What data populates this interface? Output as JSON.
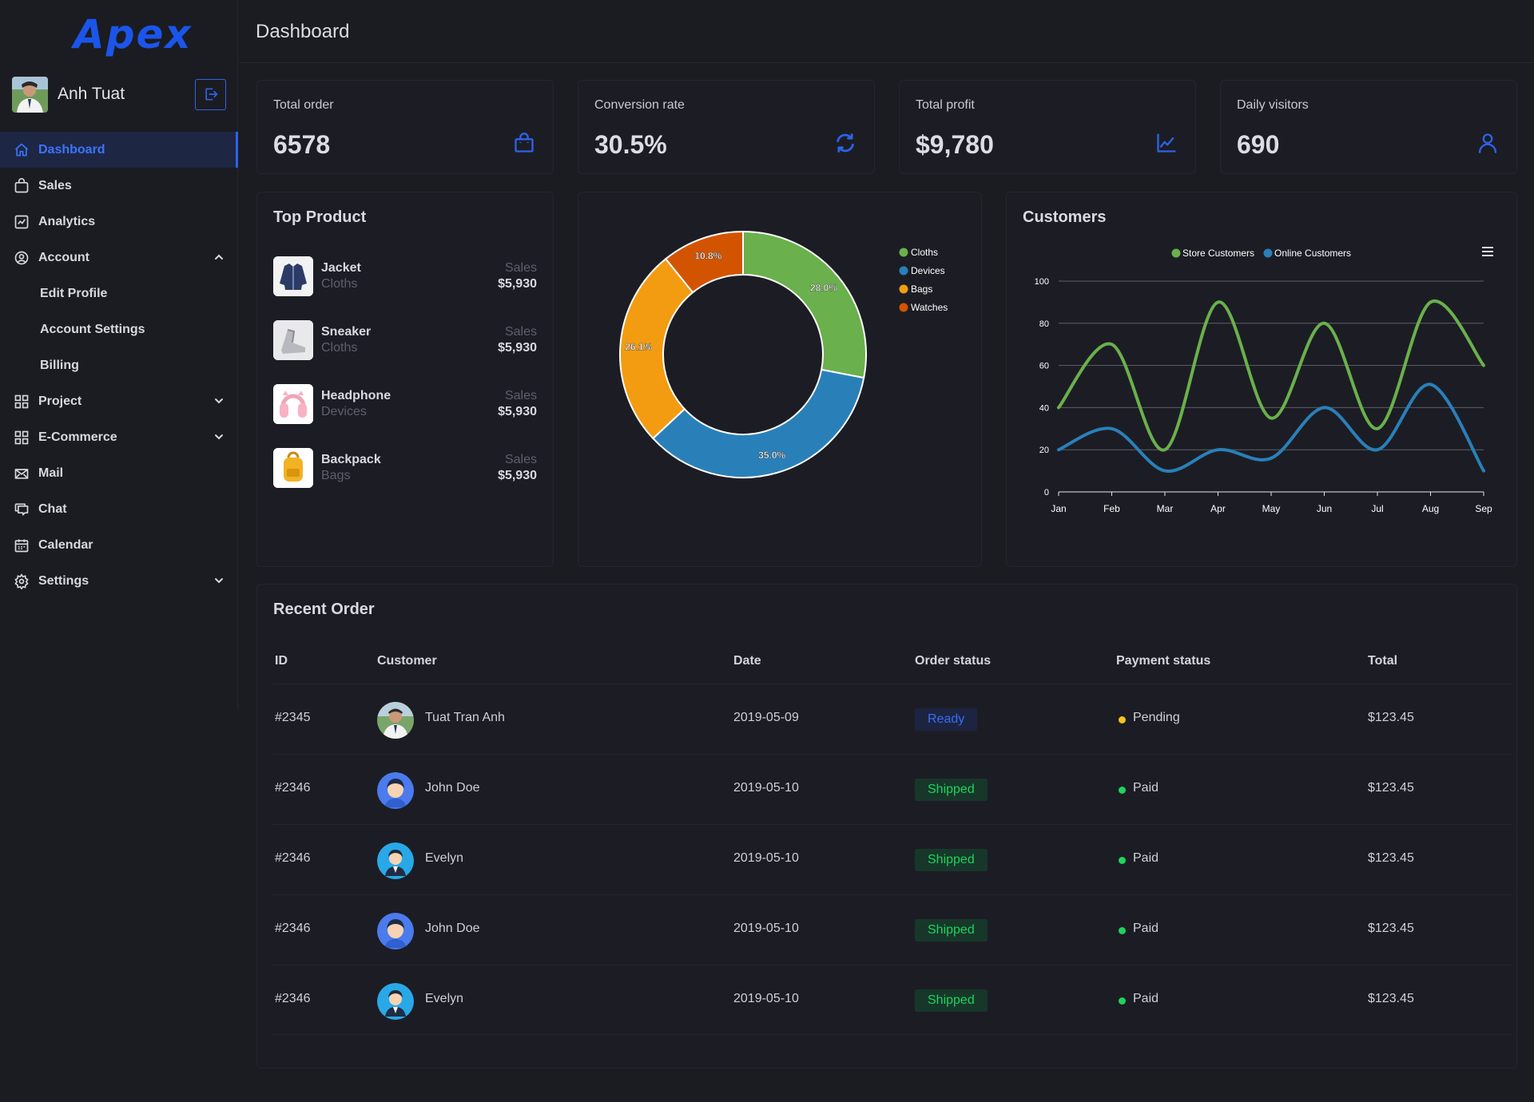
{
  "app": {
    "logo": "Apex"
  },
  "user": {
    "name": "Anh Tuat"
  },
  "nav": {
    "dashboard": "Dashboard",
    "sales": "Sales",
    "analytics": "Analytics",
    "account": "Account",
    "edit_profile": "Edit Profile",
    "account_settings": "Account Settings",
    "billing": "Billing",
    "project": "Project",
    "ecommerce": "E-Commerce",
    "mail": "Mail",
    "chat": "Chat",
    "calendar": "Calendar",
    "settings": "Settings"
  },
  "header": {
    "title": "Dashboard"
  },
  "stats": [
    {
      "label": "Total order",
      "value": "6578"
    },
    {
      "label": "Conversion rate",
      "value": "30.5%"
    },
    {
      "label": "Total profit",
      "value": "$9,780"
    },
    {
      "label": "Daily visitors",
      "value": "690"
    }
  ],
  "top_product": {
    "title": "Top Product",
    "items": [
      {
        "name": "Jacket",
        "category": "Cloths",
        "sales_label": "Sales",
        "amount": "$5,930"
      },
      {
        "name": "Sneaker",
        "category": "Cloths",
        "sales_label": "Sales",
        "amount": "$5,930"
      },
      {
        "name": "Headphone",
        "category": "Devices",
        "sales_label": "Sales",
        "amount": "$5,930"
      },
      {
        "name": "Backpack",
        "category": "Bags",
        "sales_label": "Sales",
        "amount": "$5,930"
      }
    ]
  },
  "customers": {
    "title": "Customers"
  },
  "chart_data": [
    {
      "type": "pie",
      "variant": "donut",
      "title": "",
      "legend_position": "right",
      "categories": [
        "Cloths",
        "Devices",
        "Bags",
        "Watches"
      ],
      "values": [
        28.0,
        35.0,
        26.1,
        10.8
      ],
      "labels": [
        "28.0%",
        "35.0%",
        "26.1%",
        "10.8%"
      ],
      "colors": [
        "#6ab04c",
        "#2980b9",
        "#f39c12",
        "#d35400"
      ]
    },
    {
      "type": "line",
      "title": "Customers",
      "smooth": true,
      "legend_position": "top",
      "categories": [
        "Jan",
        "Feb",
        "Mar",
        "Apr",
        "May",
        "Jun",
        "Jul",
        "Aug",
        "Sep"
      ],
      "y_ticks": [
        "0",
        "20",
        "40",
        "60",
        "80",
        "100"
      ],
      "ylim": [
        0,
        100
      ],
      "grid": true,
      "series": [
        {
          "name": "Store Customers",
          "color": "#6ab04c",
          "values": [
            40,
            70,
            20,
            90,
            35,
            80,
            30,
            90,
            60
          ]
        },
        {
          "name": "Online Customers",
          "color": "#2980b9",
          "values": [
            20,
            30,
            10,
            20,
            16,
            40,
            20,
            51,
            10
          ]
        }
      ]
    }
  ],
  "recent_order": {
    "title": "Recent Order",
    "columns": [
      "ID",
      "Customer",
      "Date",
      "Order status",
      "Payment status",
      "Total"
    ],
    "rows": [
      {
        "id": "#2345",
        "customer": "Tuat Tran Anh",
        "date": "2019-05-09",
        "order_status": "Ready",
        "payment_status": "Pending",
        "total": "$123.45"
      },
      {
        "id": "#2346",
        "customer": "John Doe",
        "date": "2019-05-10",
        "order_status": "Shipped",
        "payment_status": "Paid",
        "total": "$123.45"
      },
      {
        "id": "#2346",
        "customer": "Evelyn",
        "date": "2019-05-10",
        "order_status": "Shipped",
        "payment_status": "Paid",
        "total": "$123.45"
      },
      {
        "id": "#2346",
        "customer": "John Doe",
        "date": "2019-05-10",
        "order_status": "Shipped",
        "payment_status": "Paid",
        "total": "$123.45"
      },
      {
        "id": "#2346",
        "customer": "Evelyn",
        "date": "2019-05-10",
        "order_status": "Shipped",
        "payment_status": "Paid",
        "total": "$123.45"
      }
    ]
  },
  "colors": {
    "accent": "#2e62e8",
    "pending": "#f5c518",
    "paid": "#1ed45a"
  }
}
